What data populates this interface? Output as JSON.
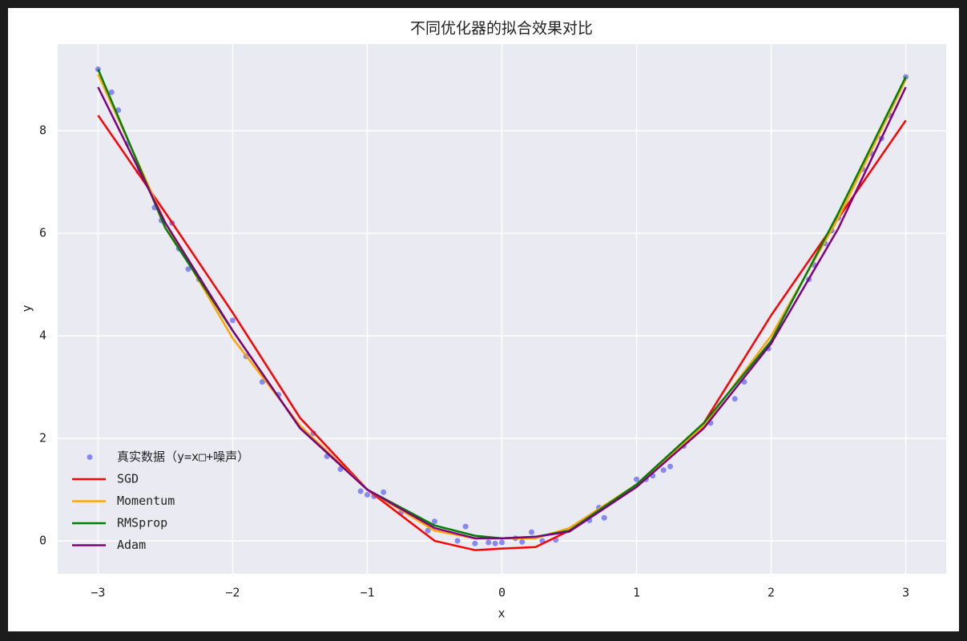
{
  "chart_data": {
    "type": "line",
    "title": "不同优化器的拟合效果对比",
    "x_label": "x",
    "y_label": "y",
    "xlim": [
      -3.3,
      3.3
    ],
    "ylim": [
      -0.64,
      9.69
    ],
    "xticks": [
      {
        "value": -3,
        "label": "−3"
      },
      {
        "value": -2,
        "label": "−2"
      },
      {
        "value": -1,
        "label": "−1"
      },
      0,
      1,
      2,
      3
    ],
    "yticks": [
      0,
      2,
      4,
      6,
      8
    ],
    "grid": true,
    "legend": "lower left",
    "scatter": {
      "name": "真实数据（y=x□+噪声）",
      "color": "#6f6ff0",
      "x": [
        -3,
        -2.9,
        -2.85,
        -2.78,
        -2.7,
        -2.58,
        -2.53,
        -2.45,
        -2.4,
        -2.33,
        -2.25,
        -2.0,
        -1.9,
        -1.78,
        -1.66,
        -1.4,
        -1.3,
        -1.2,
        -1.05,
        -1.0,
        -0.95,
        -0.88,
        -0.75,
        -0.55,
        -0.5,
        -0.33,
        -0.27,
        -0.2,
        -0.1,
        -0.05,
        0,
        0.1,
        0.15,
        0.22,
        0.3,
        0.4,
        0.65,
        0.72,
        0.76,
        1.0,
        1.07,
        1.12,
        1.2,
        1.25,
        1.35,
        1.55,
        1.73,
        1.8,
        1.98,
        2.28,
        2.32,
        2.4,
        2.45,
        2.5,
        2.68,
        2.75,
        2.82,
        2.88,
        3.0
      ],
      "values": [
        9.2,
        8.75,
        8.4,
        7.75,
        7.2,
        6.5,
        6.25,
        6.2,
        5.7,
        5.3,
        5.1,
        4.3,
        3.6,
        3.1,
        2.85,
        2.1,
        1.65,
        1.4,
        0.97,
        0.9,
        0.87,
        0.95,
        0.55,
        0.2,
        0.38,
        0.0,
        0.28,
        -0.05,
        -0.03,
        -0.05,
        -0.03,
        0.05,
        -0.02,
        0.17,
        0.0,
        0.02,
        0.4,
        0.65,
        0.45,
        1.2,
        1.2,
        1.27,
        1.38,
        1.45,
        1.85,
        2.3,
        2.77,
        3.1,
        3.75,
        5.1,
        5.38,
        5.8,
        6.05,
        6.3,
        7.25,
        7.55,
        7.85,
        8.3,
        9.05
      ]
    },
    "x": [
      -3,
      -2.5,
      -2,
      -1.5,
      -1,
      -0.5,
      -0.2,
      0,
      0.25,
      0.5,
      1,
      1.5,
      2,
      2.5,
      3
    ],
    "series": [
      {
        "name": "SGD",
        "color": "#ff0000",
        "values": [
          8.3,
          6.4,
          4.45,
          2.4,
          1.0,
          0.0,
          -0.18,
          -0.15,
          -0.12,
          0.2,
          1.1,
          2.3,
          4.4,
          6.3,
          8.2
        ]
      },
      {
        "name": "Momentum",
        "color": "#ffa500",
        "values": [
          9.1,
          6.2,
          3.95,
          2.25,
          1.0,
          0.2,
          0.05,
          0.05,
          0.05,
          0.25,
          1.1,
          2.25,
          4.0,
          6.3,
          9.0
        ]
      },
      {
        "name": "RMSprop",
        "color": "#008000",
        "values": [
          9.2,
          6.1,
          4.1,
          2.2,
          1.0,
          0.3,
          0.1,
          0.05,
          0.08,
          0.2,
          1.1,
          2.3,
          3.9,
          6.4,
          9.05
        ]
      },
      {
        "name": "Adam",
        "color": "#800080",
        "values": [
          8.85,
          6.2,
          4.1,
          2.2,
          1.0,
          0.25,
          0.05,
          0.05,
          0.08,
          0.18,
          1.05,
          2.2,
          3.85,
          6.1,
          8.85
        ]
      }
    ]
  }
}
